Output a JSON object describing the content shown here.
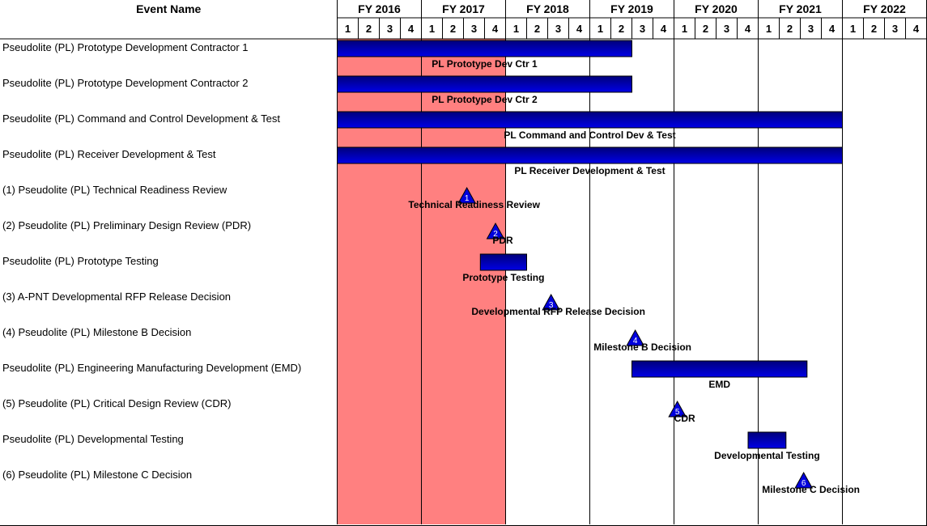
{
  "header": {
    "event_name_label": "Event Name",
    "fiscal_years": [
      "FY 2016",
      "FY 2017",
      "FY 2018",
      "FY 2019",
      "FY 2020",
      "FY 2021",
      "FY 2022"
    ],
    "quarters": [
      "1",
      "2",
      "3",
      "4"
    ]
  },
  "colors": {
    "highlight": "#ff8080",
    "bar_dark": "#00007a",
    "bar_light": "#0000e6",
    "milestone": "#0000dd",
    "grid": "#000000"
  },
  "chart_data": {
    "type": "gantt",
    "x_unit": "fiscal quarter",
    "xlim": [
      "FY2016 Q1",
      "FY2022 Q4"
    ],
    "highlight_range": {
      "start": "FY2016 Q1",
      "end": "FY2017 Q4"
    },
    "rows": [
      {
        "event": "Pseudolite (PL) Prototype Development Contractor 1",
        "kind": "bar",
        "start": 2016.0,
        "end": 2019.5,
        "label": "PL Prototype Dev Ctr 1"
      },
      {
        "event": "Pseudolite (PL) Prototype Development Contractor 2",
        "kind": "bar",
        "start": 2016.0,
        "end": 2019.5,
        "label": "PL Prototype Dev Ctr 2"
      },
      {
        "event": "Pseudolite (PL) Command and Control Development & Test",
        "kind": "bar",
        "start": 2016.0,
        "end": 2022.0,
        "label": "PL Command and Control Dev & Test"
      },
      {
        "event": "Pseudolite (PL) Receiver Development & Test",
        "kind": "bar",
        "start": 2016.0,
        "end": 2022.0,
        "label": "PL Receiver Development & Test"
      },
      {
        "event": "(1) Pseudolite (PL) Technical Readiness Review",
        "kind": "milestone",
        "at": 2017.54,
        "number": "1",
        "label": "Technical Readiness Review"
      },
      {
        "event": "(2) Pseudolite (PL) Preliminary Design Review (PDR)",
        "kind": "milestone",
        "at": 2017.88,
        "number": "2",
        "label": "PDR"
      },
      {
        "event": "Pseudolite (PL) Prototype Testing",
        "kind": "bar",
        "start": 2017.7,
        "end": 2018.25,
        "label": "Prototype Testing"
      },
      {
        "event": "(3) A-PNT Developmental RFP Release Decision",
        "kind": "milestone",
        "at": 2018.54,
        "number": "3",
        "label": "Developmental RFP Release Decision"
      },
      {
        "event": "(4) Pseudolite (PL) Milestone B Decision",
        "kind": "milestone",
        "at": 2019.54,
        "number": "4",
        "label": "Milestone B Decision"
      },
      {
        "event": "Pseudolite (PL) Engineering Manufacturing Development (EMD)",
        "kind": "bar",
        "start": 2019.5,
        "end": 2021.58,
        "label": "EMD"
      },
      {
        "event": "(5) Pseudolite (PL) Critical Design Review (CDR)",
        "kind": "milestone",
        "at": 2020.04,
        "number": "5",
        "label": "CDR"
      },
      {
        "event": "Pseudolite (PL) Developmental Testing",
        "kind": "bar",
        "start": 2020.88,
        "end": 2021.33,
        "label": "Developmental Testing"
      },
      {
        "event": "(6) Pseudolite (PL) Milestone C Decision",
        "kind": "milestone",
        "at": 2021.54,
        "number": "6",
        "label": "Milestone C Decision"
      }
    ]
  }
}
